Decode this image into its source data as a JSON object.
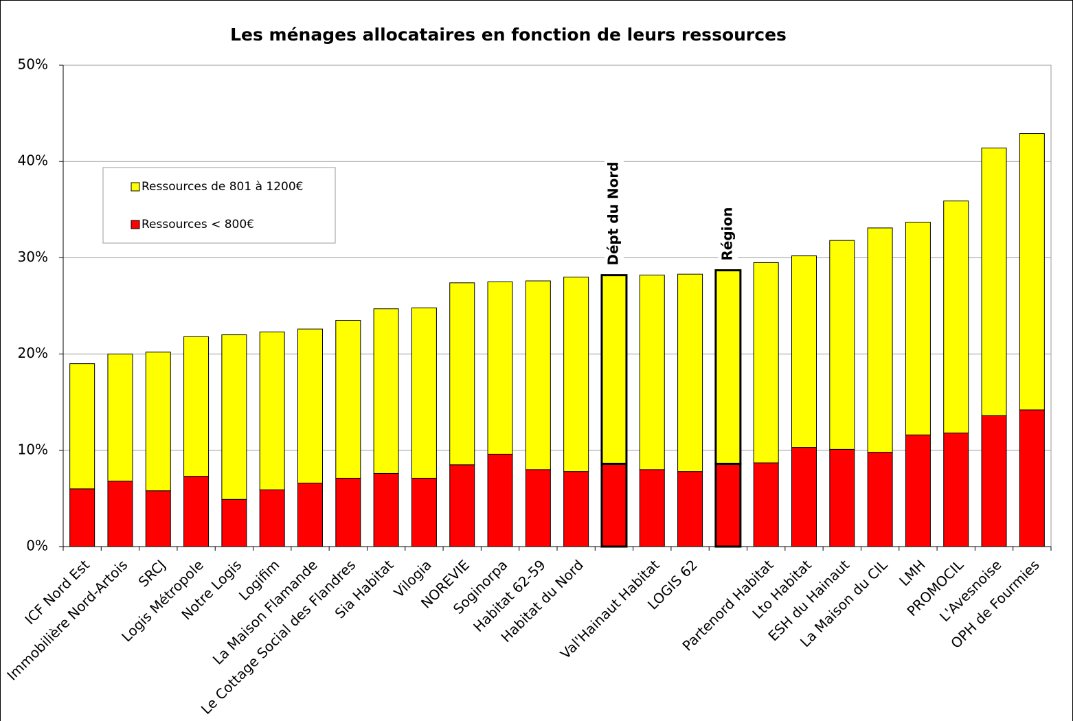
{
  "chart_data": {
    "type": "stacked_bar",
    "title": "Les ménages allocataires en fonction de leurs ressources",
    "categories": [
      "ICF Nord Est",
      "Immobilière Nord-Artois",
      "SRCJ",
      "Logis Métropole",
      "Notre Logis",
      "Logifim",
      "La Maison Flamande",
      "Le Cottage Social des Flandres",
      "Sia Habitat",
      "Vilogia",
      "NOREVIE",
      "Soginorpa",
      "Habitat 62-59",
      "Habitat du Nord",
      null,
      "Val'Hainaut Habitat",
      "LOGIS 62",
      null,
      "Partenord Habitat",
      "Lto Habitat",
      "ESH du Hainaut",
      "La Maison du CIL",
      "LMH",
      "PROMOCIL",
      "L'Avesnoise",
      "OPH de Fourmies"
    ],
    "annotations": [
      "Dépt du Nord",
      "Région"
    ],
    "series": [
      {
        "name": "Ressources < 800€",
        "color": "#ff0000",
        "values": [
          6.0,
          6.8,
          5.8,
          7.3,
          4.9,
          5.9,
          6.6,
          7.1,
          7.6,
          7.1,
          8.5,
          9.6,
          8.0,
          7.8,
          8.6,
          8.0,
          7.8,
          8.6,
          8.7,
          10.3,
          10.1,
          9.8,
          11.6,
          11.8,
          13.6,
          14.2
        ]
      },
      {
        "name": "Ressources de 801 à 1200€",
        "color": "#ffff00",
        "values": [
          13.0,
          13.2,
          14.4,
          14.5,
          17.1,
          16.4,
          16.0,
          16.4,
          17.1,
          17.7,
          18.9,
          17.9,
          19.6,
          20.2,
          19.6,
          20.2,
          20.5,
          20.1,
          20.8,
          19.9,
          21.7,
          23.3,
          22.1,
          24.1,
          27.8,
          28.7
        ]
      }
    ],
    "ylim": [
      0,
      50
    ],
    "yticks": [
      {
        "value": 0,
        "label": "0%"
      },
      {
        "value": 10,
        "label": "10%"
      },
      {
        "value": 20,
        "label": "20%"
      },
      {
        "value": 30,
        "label": "30%"
      },
      {
        "value": 40,
        "label": "40%"
      },
      {
        "value": 50,
        "label": "50%"
      }
    ],
    "grid": true
  }
}
